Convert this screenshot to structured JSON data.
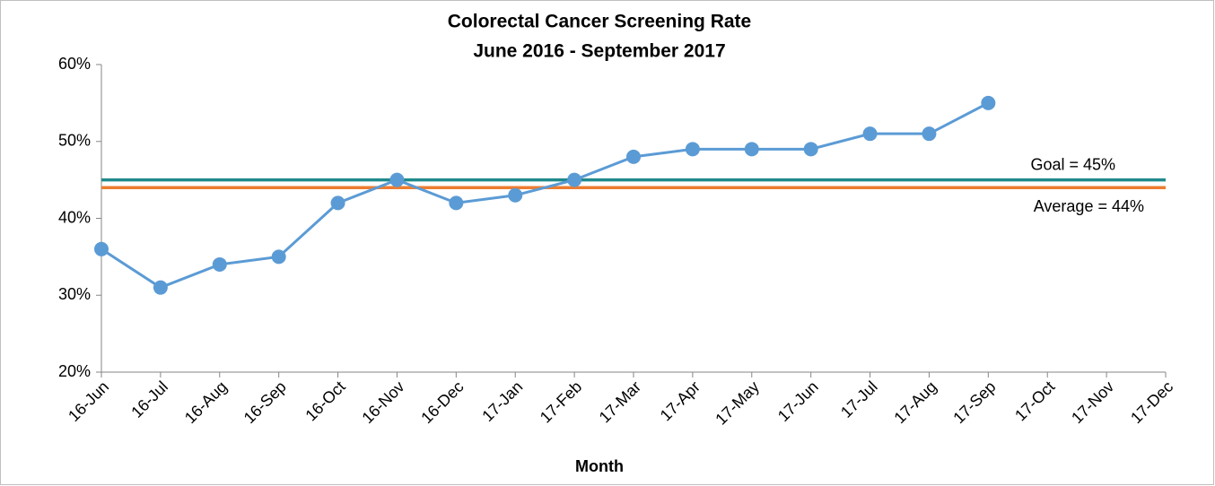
{
  "chart_data": {
    "type": "line",
    "title": "Colorectal Cancer Screening Rate",
    "subtitle": "June 2016 - September 2017",
    "x_label": "Month",
    "categories": [
      "16-Jun",
      "16-Jul",
      "16-Aug",
      "16-Sep",
      "16-Oct",
      "16-Nov",
      "16-Dec",
      "17-Jan",
      "17-Feb",
      "17-Mar",
      "17-Apr",
      "17-May",
      "17-Jun",
      "17-Jul",
      "17-Aug",
      "17-Sep",
      "17-Oct",
      "17-Nov",
      "17-Dec"
    ],
    "series": [
      {
        "name": "Screening Rate",
        "color": "#5b9bd5",
        "values": [
          36,
          31,
          34,
          35,
          42,
          45,
          42,
          43,
          45,
          48,
          49,
          49,
          49,
          51,
          51,
          55,
          null,
          null,
          null
        ]
      }
    ],
    "reference_lines": [
      {
        "label": "Goal = 45%",
        "value": 45,
        "color": "#1f8a8c"
      },
      {
        "label": "Average = 44%",
        "value": 44,
        "color": "#ed7d31"
      }
    ],
    "ylim": [
      20,
      60
    ],
    "yticks": [
      {
        "value": 20,
        "label": "20%"
      },
      {
        "value": 30,
        "label": "30%"
      },
      {
        "value": 40,
        "label": "40%"
      },
      {
        "value": 50,
        "label": "50%"
      },
      {
        "value": 60,
        "label": "60%"
      }
    ],
    "grid": false
  }
}
